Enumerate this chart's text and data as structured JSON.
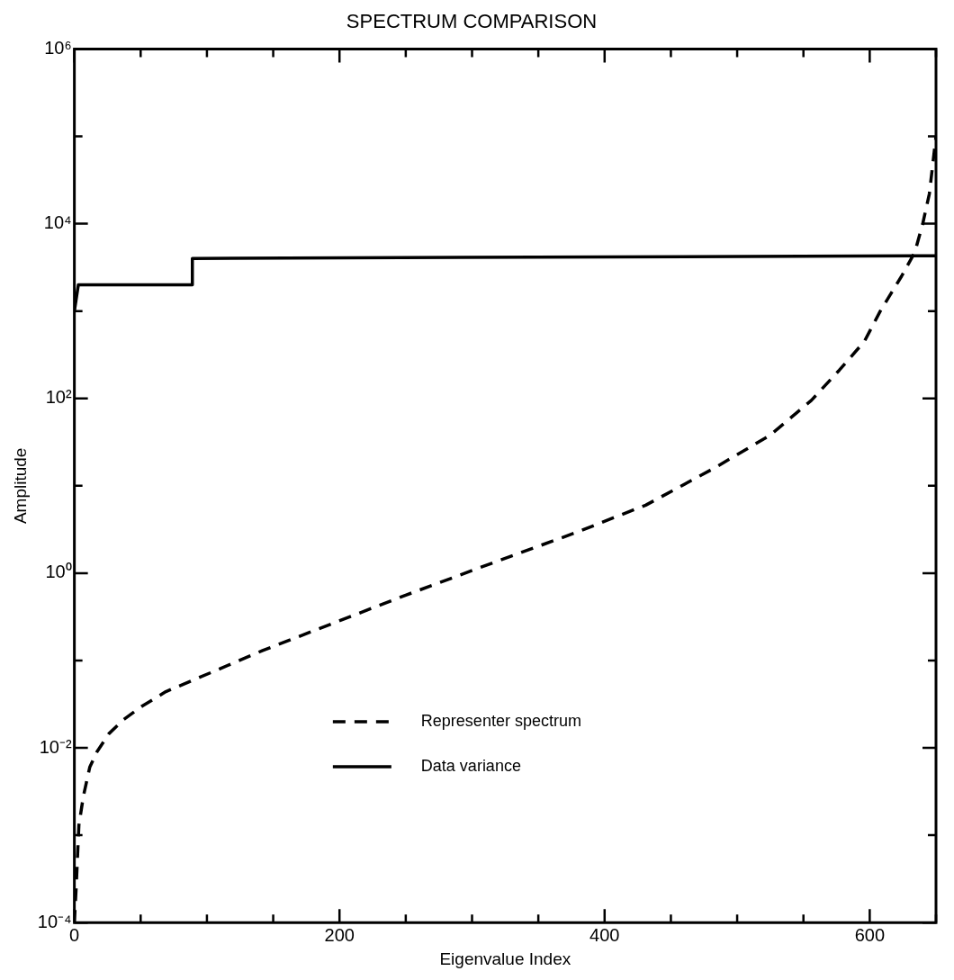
{
  "chart_data": {
    "type": "line",
    "title": "SPECTRUM COMPARISON",
    "xlabel": "Eigenvalue Index",
    "ylabel": "Amplitude",
    "xlim": [
      0,
      650
    ],
    "xticks": [
      0,
      {
        "value": 50,
        "label": null
      },
      {
        "value": 100,
        "label": null
      },
      {
        "value": 150,
        "label": null
      },
      200,
      {
        "value": 250,
        "label": null
      },
      {
        "value": 300,
        "label": null
      },
      {
        "value": 350,
        "label": null
      },
      400,
      {
        "value": 450,
        "label": null
      },
      {
        "value": 500,
        "label": null
      },
      {
        "value": 550,
        "label": null
      },
      600,
      {
        "value": 650,
        "label": null
      }
    ],
    "ylim": [
      0.0001,
      1000000
    ],
    "yticks": [
      {
        "value": 0.0001,
        "label": "10⁻⁴"
      },
      {
        "value": 0.001,
        "label": null
      },
      {
        "value": 0.01,
        "label": "10⁻²"
      },
      {
        "value": 0.1,
        "label": null
      },
      {
        "value": 1,
        "label": "10⁰"
      },
      {
        "value": 10,
        "label": null
      },
      {
        "value": 100,
        "label": "10²"
      },
      {
        "value": 1000,
        "label": null
      },
      {
        "value": 10000,
        "label": "10⁴"
      },
      {
        "value": 100000,
        "label": null
      },
      {
        "value": 1000000,
        "label": "10⁶"
      }
    ],
    "log": "y",
    "grid": false,
    "legend": "bottom left",
    "marker": "none",
    "series": [
      {
        "name": "Representer spectrum",
        "color": "#000000",
        "line_style": "dashed",
        "x": [
          0,
          1.4,
          3.4,
          6.8,
          11.6,
          17,
          26,
          37,
          51,
          69,
          106,
          142,
          196,
          250,
          315,
          378,
          431,
          483,
          525,
          556,
          577,
          596,
          608,
          624,
          634,
          640,
          645,
          650
        ],
        "values": [
          0.0001,
          0.00026,
          0.0013,
          0.0028,
          0.006,
          0.009,
          0.0145,
          0.021,
          0.03,
          0.044,
          0.076,
          0.13,
          0.27,
          0.56,
          1.3,
          2.9,
          6,
          16,
          38,
          95,
          210,
          450,
          1000,
          2500,
          4700,
          10000,
          22000,
          100000
        ]
      },
      {
        "name": "Data variance",
        "color": "#000000",
        "line_style": "solid",
        "x": [
          0,
          3,
          89,
          89,
          650
        ],
        "values": [
          1000,
          2000,
          2000,
          4000,
          4300
        ]
      }
    ]
  }
}
